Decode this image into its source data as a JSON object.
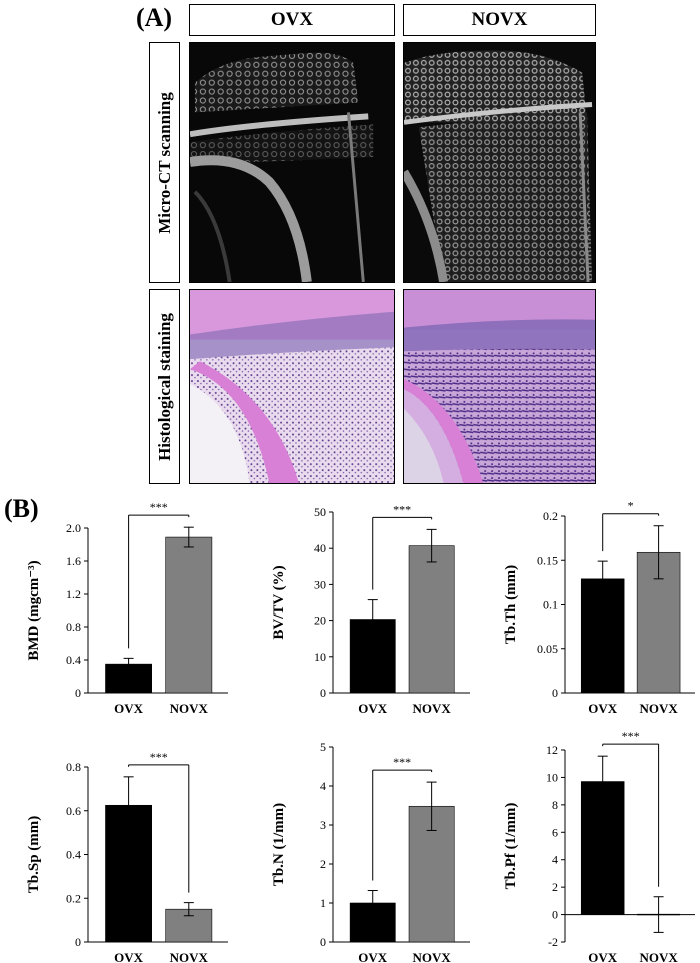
{
  "panel_a": {
    "label": "(A)",
    "columns": [
      "OVX",
      "NOVX"
    ],
    "rows": [
      "Micro-CT scanning",
      "Histological staining"
    ]
  },
  "panel_b": {
    "label": "(B)"
  },
  "colors": {
    "ovx_bar": "#000000",
    "novx_bar": "#808080",
    "he_pink": "#d87fd6",
    "he_purple": "#6a3a9c"
  },
  "chart_data": [
    {
      "type": "bar",
      "ylabel": "BMD (mgcm⁻³)",
      "categories": [
        "OVX",
        "NOVX"
      ],
      "values": [
        0.35,
        1.89
      ],
      "errors": [
        0.07,
        0.12
      ],
      "ylim": [
        0,
        2.0
      ],
      "yticks": [
        "0",
        "0.4",
        "0.8",
        "1.2",
        "1.6",
        "2.0"
      ],
      "significance": "***"
    },
    {
      "type": "bar",
      "ylabel": "BV/TV (%)",
      "categories": [
        "OVX",
        "NOVX"
      ],
      "values": [
        20.3,
        40.7
      ],
      "errors": [
        5.5,
        4.5
      ],
      "ylim": [
        0,
        50
      ],
      "yticks": [
        "0",
        "10",
        "20",
        "30",
        "40",
        "50"
      ],
      "significance": "***"
    },
    {
      "type": "bar",
      "ylabel": "Tb.Th (mm)",
      "categories": [
        "OVX",
        "NOVX"
      ],
      "values": [
        0.129,
        0.159
      ],
      "errors": [
        0.02,
        0.03
      ],
      "ylim": [
        0,
        0.2
      ],
      "yticks": [
        "0",
        "0.05",
        "0.1",
        "0.15",
        "0.2"
      ],
      "significance": "*"
    },
    {
      "type": "bar",
      "ylabel": "Tb.Sp (mm)",
      "categories": [
        "OVX",
        "NOVX"
      ],
      "values": [
        0.625,
        0.15
      ],
      "errors": [
        0.13,
        0.03
      ],
      "ylim": [
        0,
        0.8
      ],
      "yticks": [
        "0",
        "0.2",
        "0.4",
        "0.6",
        "0.8"
      ],
      "significance": "***"
    },
    {
      "type": "bar",
      "ylabel": "Tb.N (1/mm)",
      "categories": [
        "OVX",
        "NOVX"
      ],
      "values": [
        1.0,
        3.48
      ],
      "errors": [
        0.32,
        0.62
      ],
      "ylim": [
        0,
        5
      ],
      "yticks": [
        "0",
        "1",
        "2",
        "3",
        "4",
        "5"
      ],
      "significance": "***"
    },
    {
      "type": "bar",
      "ylabel": "Tb.Pf (1/mm)",
      "categories": [
        "OVX",
        "NOVX"
      ],
      "values": [
        9.7,
        0.0
      ],
      "errors": [
        1.85,
        1.3
      ],
      "ylim": [
        -2,
        12
      ],
      "yticks": [
        "-2",
        "0",
        "2",
        "4",
        "6",
        "8",
        "10",
        "12"
      ],
      "significance": "***"
    }
  ]
}
